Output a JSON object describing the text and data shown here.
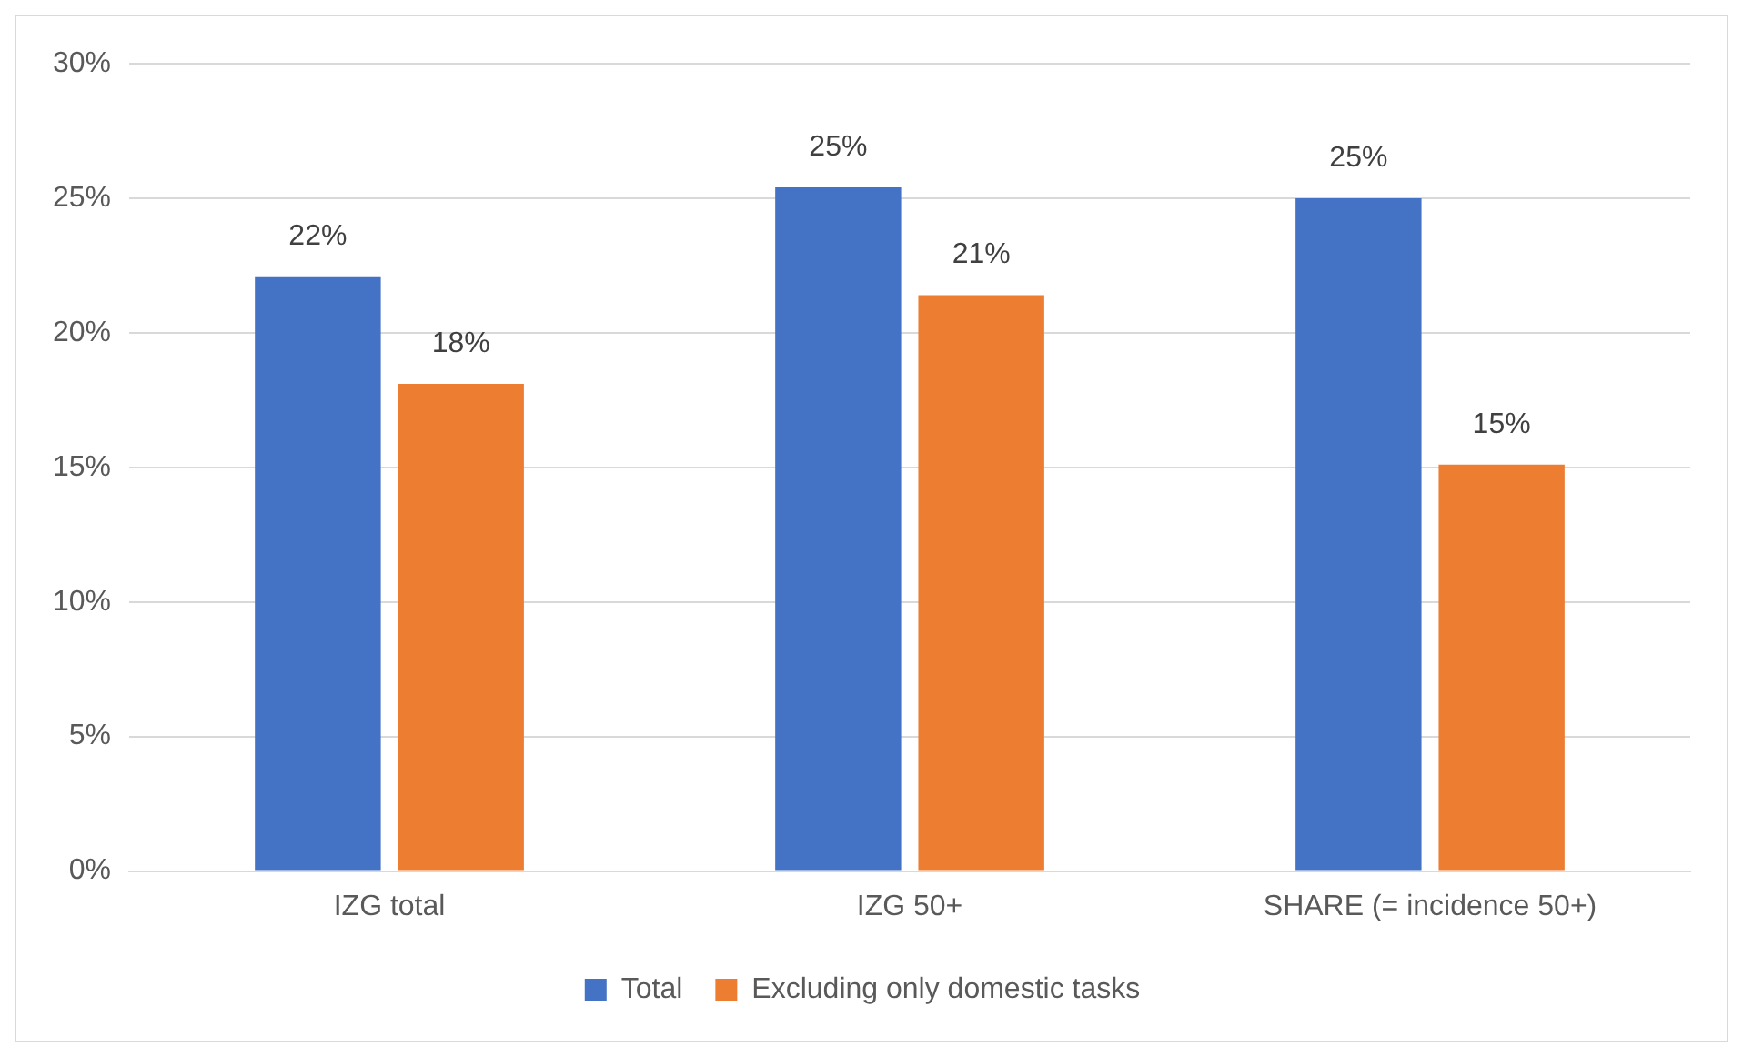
{
  "chart_data": {
    "type": "bar",
    "categories": [
      "IZG total",
      "IZG 50+",
      "SHARE (= incidence 50+)"
    ],
    "series": [
      {
        "name": "Total",
        "color": "#4472c4",
        "values": [
          22.1,
          25.4,
          25.0
        ],
        "value_labels": [
          "22%",
          "25%",
          "25%"
        ]
      },
      {
        "name": "Excluding only domestic tasks",
        "color": "#ed7d31",
        "values": [
          18.1,
          21.4,
          15.1
        ],
        "value_labels": [
          "18%",
          "21%",
          "15%"
        ]
      }
    ],
    "ylim": [
      0,
      30
    ],
    "yticks": [
      {
        "value": 0,
        "label": "0%"
      },
      {
        "value": 5,
        "label": "5%"
      },
      {
        "value": 10,
        "label": "10%"
      },
      {
        "value": 15,
        "label": "15%"
      },
      {
        "value": 20,
        "label": "20%"
      },
      {
        "value": 25,
        "label": "25%"
      },
      {
        "value": 30,
        "label": "30%"
      }
    ],
    "grid": "y",
    "legend": "bottom"
  }
}
